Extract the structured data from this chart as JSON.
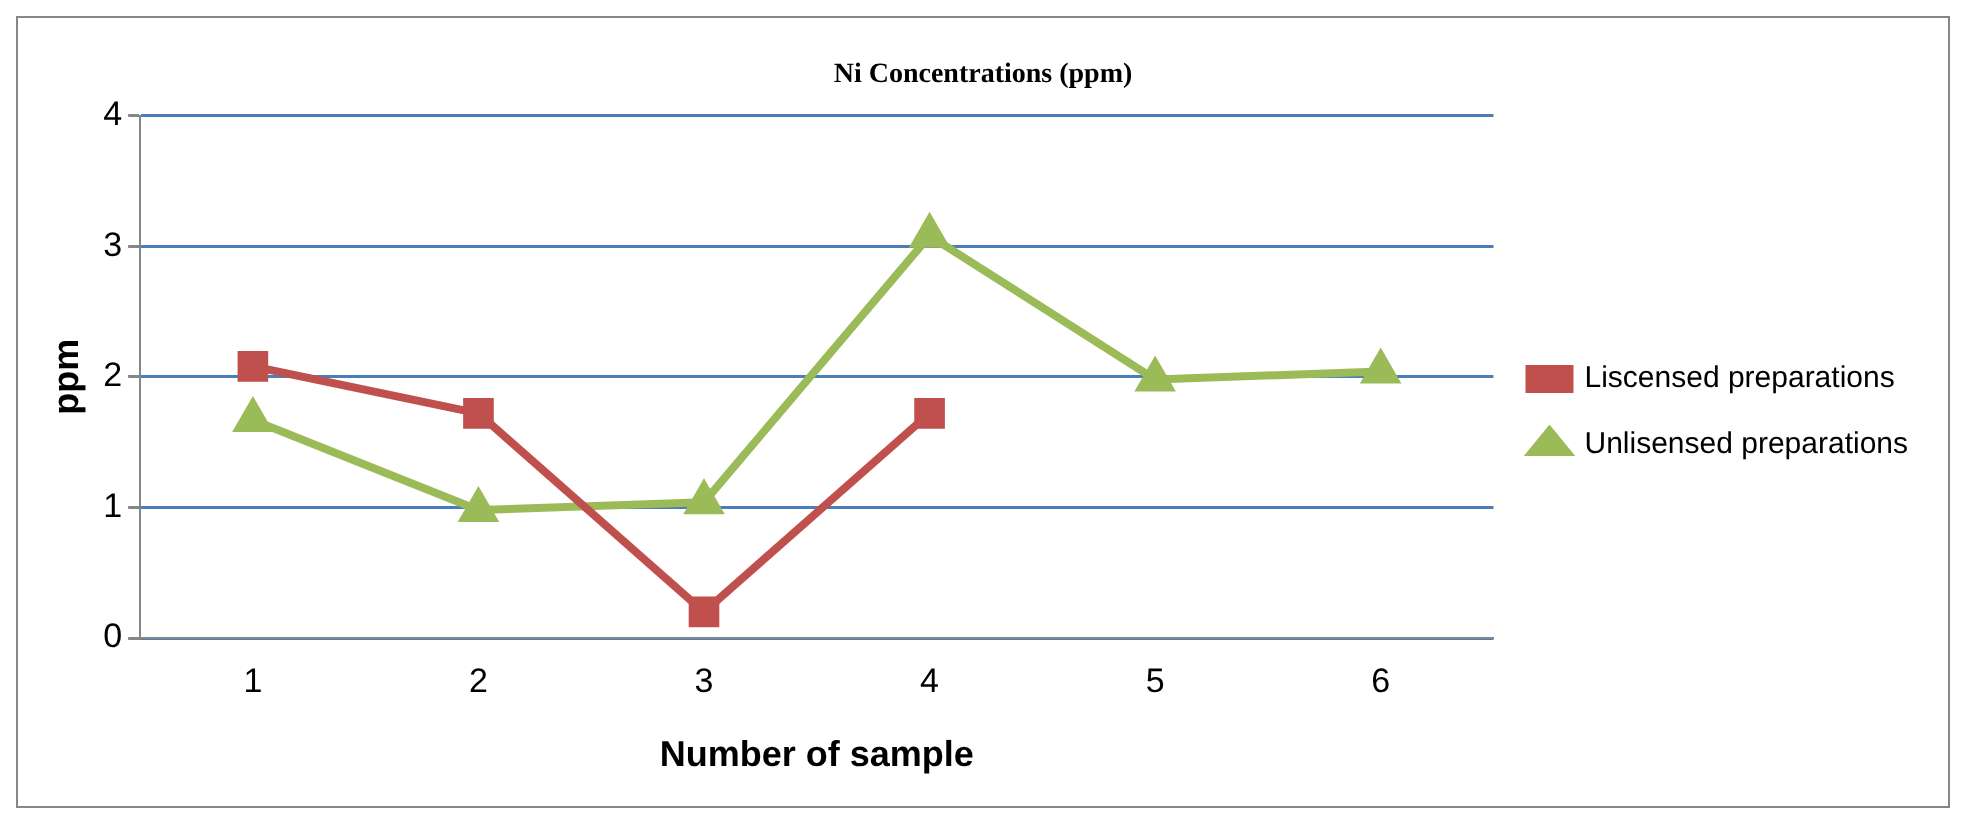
{
  "chart_data": {
    "type": "line",
    "title": "Ni Concentrations (ppm)",
    "xlabel": "Number of sample",
    "ylabel": "ppm",
    "categories": [
      "1",
      "2",
      "3",
      "4",
      "5",
      "6"
    ],
    "series": [
      {
        "name": "Liscensed preparations",
        "color": "#c0504d",
        "marker": "square",
        "values": [
          2.08,
          1.72,
          0.2,
          1.72,
          null,
          null
        ]
      },
      {
        "name": "Unlisensed preparations",
        "color": "#9bbb59",
        "marker": "triangle",
        "values": [
          1.67,
          0.98,
          1.04,
          3.08,
          1.98,
          2.04
        ]
      }
    ],
    "ylim": [
      0,
      4
    ],
    "yticks": [
      0,
      1,
      2,
      3,
      4
    ],
    "grid": "y",
    "legend": "right",
    "line_style": "solid"
  }
}
